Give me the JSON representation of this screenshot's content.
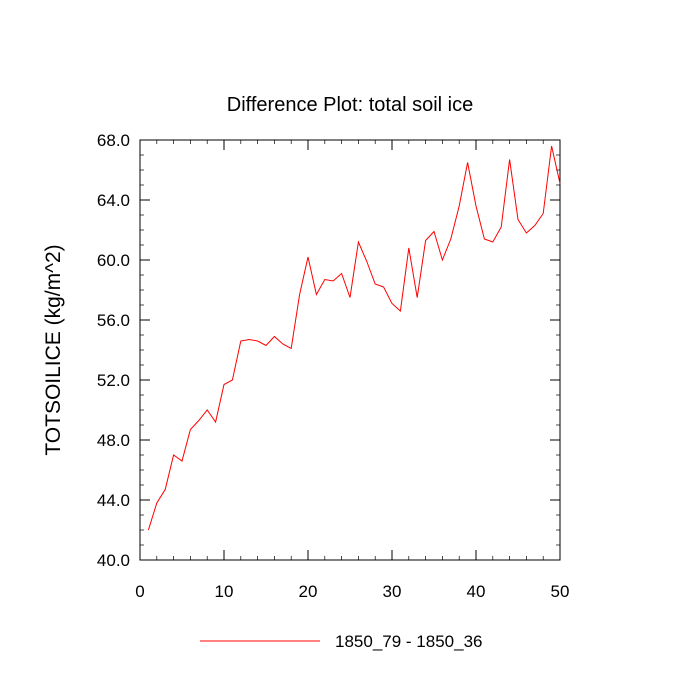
{
  "chart_data": {
    "type": "line",
    "title": "Difference Plot: total soil ice",
    "xlabel": "",
    "ylabel": "TOTSOILICE  (kg/m^2)",
    "xlim": [
      0,
      50
    ],
    "ylim": [
      40,
      68
    ],
    "x_ticks": [
      0,
      10,
      20,
      30,
      40,
      50
    ],
    "x_tick_labels": [
      "0",
      "10",
      "20",
      "30",
      "40",
      "50"
    ],
    "y_ticks": [
      40,
      44,
      48,
      52,
      56,
      60,
      64,
      68
    ],
    "y_tick_labels": [
      "40.0",
      "44.0",
      "48.0",
      "52.0",
      "56.0",
      "60.0",
      "64.0",
      "68.0"
    ],
    "grid": false,
    "legend_position": "bottom-center",
    "series": [
      {
        "name": "1850_79 - 1850_36",
        "color": "#ff0000",
        "x": [
          1,
          2,
          3,
          4,
          5,
          6,
          7,
          8,
          9,
          10,
          11,
          12,
          13,
          14,
          15,
          16,
          17,
          18,
          19,
          20,
          21,
          22,
          23,
          24,
          25,
          26,
          27,
          28,
          29,
          30,
          31,
          32,
          33,
          34,
          35,
          36,
          37,
          38,
          39,
          40,
          41,
          42,
          43,
          44,
          45,
          46,
          47,
          48,
          49,
          50
        ],
        "values": [
          42.0,
          43.8,
          44.7,
          47.0,
          46.6,
          48.7,
          49.3,
          50.0,
          49.2,
          51.7,
          52.0,
          54.6,
          54.7,
          54.6,
          54.3,
          54.9,
          54.4,
          54.1,
          57.7,
          60.2,
          57.7,
          58.7,
          58.6,
          59.1,
          57.5,
          61.2,
          59.9,
          58.4,
          58.2,
          57.1,
          56.6,
          60.8,
          57.5,
          61.3,
          61.9,
          60.0,
          61.4,
          63.6,
          66.5,
          63.6,
          61.4,
          61.2,
          62.2,
          66.7,
          62.7,
          61.8,
          62.3,
          63.1,
          67.6,
          65.1
        ]
      }
    ]
  }
}
